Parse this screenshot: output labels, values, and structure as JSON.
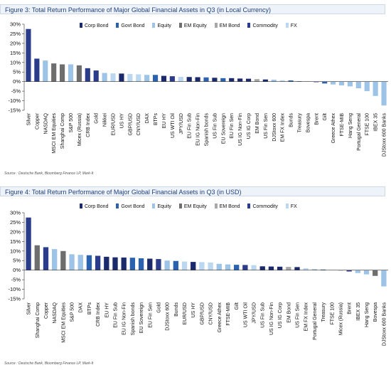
{
  "legend": [
    {
      "name": "Corp Bond",
      "color": "#1b2a6b"
    },
    {
      "name": "Govt Bond",
      "color": "#2b62b0"
    },
    {
      "name": "Equity",
      "color": "#9dc3e6"
    },
    {
      "name": "EM Equity",
      "color": "#6e6e6e"
    },
    {
      "name": "EM Bond",
      "color": "#a8a8a8"
    },
    {
      "name": "Commodity",
      "color": "#2a3c8a"
    },
    {
      "name": "FX",
      "color": "#bcd8f0"
    }
  ],
  "chart_data": [
    {
      "type": "bar",
      "title": "Figure 3: Total Return Performance of Major Global Financial Assets in Q3 (in Local Currency)",
      "source": "Source : Deutsche Bank, Bloomberg Finance LP, Mark-It",
      "ylim": [
        -15,
        30
      ],
      "yticks": [
        "-15%",
        "-10%",
        "-5%",
        "0%",
        "5%",
        "10%",
        "15%",
        "20%",
        "25%",
        "30%"
      ],
      "grid": false,
      "legend_position": "top",
      "categories": [
        "Silver",
        "Copper",
        "NASDAQ",
        "MSCI EM Equities",
        "Shanghai Comp",
        "S&P 500",
        "Micex (Russia)",
        "CRB Index",
        "Gold",
        "Nikkei",
        "EUR/USD",
        "US HY",
        "GBP/USD",
        "CNY/USD",
        "DAX",
        "BTPs",
        "EU HY",
        "US WTI Oil",
        "JPY/USD",
        "EU Fin Sub",
        "EU IG Non-Fin",
        "Spanish bonds",
        "US Fin Sub",
        "EU Sovereign",
        "EU Fin Sen",
        "US IG Non-Fin",
        "US IG Corp",
        "EM Bond",
        "US Fin Sen",
        "DJStoxx 600",
        "EM FX Index",
        "Bunds",
        "Treasury",
        "Bovespa",
        "Brent",
        "Gilt",
        "Greece Athex",
        "FTSE-MIB",
        "Hang Seng",
        "Portugal General",
        "FTSE 100",
        "IBEX 35",
        "DJStoxx 600 Banks"
      ],
      "values": [
        27.5,
        12,
        11,
        9.5,
        9,
        9,
        8.5,
        7,
        5.8,
        4.5,
        4.3,
        4.2,
        4,
        3.8,
        3.5,
        3.5,
        3,
        2.8,
        2.5,
        2.4,
        2.3,
        2.2,
        2,
        1.8,
        1.8,
        1.6,
        1.5,
        1.3,
        1.1,
        1,
        0.7,
        0.6,
        0.2,
        0.1,
        -0.3,
        -1,
        -1.5,
        -2,
        -2.5,
        -3.5,
        -5,
        -7.5,
        -12.5
      ],
      "colors": [
        "#2a3c8a",
        "#2a3c8a",
        "#9dc3e6",
        "#6e6e6e",
        "#6e6e6e",
        "#9dc3e6",
        "#6e6e6e",
        "#2a3c8a",
        "#2a3c8a",
        "#9dc3e6",
        "#bcd8f0",
        "#1b2a6b",
        "#bcd8f0",
        "#bcd8f0",
        "#9dc3e6",
        "#2b62b0",
        "#1b2a6b",
        "#2a3c8a",
        "#bcd8f0",
        "#1b2a6b",
        "#1b2a6b",
        "#2b62b0",
        "#1b2a6b",
        "#2b62b0",
        "#1b2a6b",
        "#1b2a6b",
        "#1b2a6b",
        "#a8a8a8",
        "#1b2a6b",
        "#9dc3e6",
        "#bcd8f0",
        "#2b62b0",
        "#2b62b0",
        "#6e6e6e",
        "#2a3c8a",
        "#2b62b0",
        "#9dc3e6",
        "#9dc3e6",
        "#9dc3e6",
        "#9dc3e6",
        "#9dc3e6",
        "#9dc3e6",
        "#9dc3e6"
      ]
    },
    {
      "type": "bar",
      "title": "Figure 4: Total Return Performance of Major Global Financial Assets in Q3 (in USD)",
      "source": "Source : Deutsche Bank, Bloomberg Finance LP, Mark-It",
      "ylim": [
        -15,
        30
      ],
      "yticks": [
        "-15%",
        "-10%",
        "-5%",
        "0%",
        "5%",
        "10%",
        "15%",
        "20%",
        "25%",
        "30%"
      ],
      "grid": false,
      "legend_position": "top",
      "categories": [
        "Silver",
        "Shanghai Comp",
        "Copper",
        "NASDAQ",
        "MSCI EM Equities",
        "S&P 500",
        "DAX",
        "BTPs",
        "CRB Index",
        "EU HY",
        "EU Fin Sub",
        "EU IG Non-Fin",
        "Spanish bonds",
        "EU Sovereign",
        "EU Fin Sen",
        "Gold",
        "DJStoxx 600",
        "Bunds",
        "EUR/USD",
        "US HY",
        "GBP/USD",
        "CNY/USD",
        "Greece Athex",
        "FTSE-MIB",
        "Gilt",
        "US WTI Oil",
        "JPY/USD",
        "US Fin Sub",
        "US IG Non-Fin",
        "US IG Corp",
        "EM Bond",
        "US Fin Sen",
        "EM FX Index",
        "Portugal General",
        "Treasury",
        "FTSE 100",
        "Micex (Russia)",
        "Brent",
        "IBEX 35",
        "Hang Seng",
        "Bovespa",
        "DJStoxx 600 Banks"
      ],
      "values": [
        27.5,
        13,
        12,
        11,
        10,
        8.3,
        8,
        7.8,
        7.5,
        7,
        6.7,
        6.6,
        6.5,
        6.2,
        6,
        5.8,
        5,
        4.8,
        4.5,
        4.3,
        4.2,
        4,
        3.3,
        3,
        2.8,
        2.7,
        2.6,
        2,
        1.9,
        1.8,
        1.7,
        1.6,
        1,
        0.5,
        0.3,
        0.1,
        -0.2,
        -0.7,
        -1.5,
        -2.2,
        -3,
        -8.5
      ],
      "colors": [
        "#2a3c8a",
        "#6e6e6e",
        "#2a3c8a",
        "#9dc3e6",
        "#6e6e6e",
        "#9dc3e6",
        "#9dc3e6",
        "#2b62b0",
        "#2a3c8a",
        "#1b2a6b",
        "#1b2a6b",
        "#1b2a6b",
        "#2b62b0",
        "#2b62b0",
        "#1b2a6b",
        "#2a3c8a",
        "#9dc3e6",
        "#2b62b0",
        "#bcd8f0",
        "#1b2a6b",
        "#bcd8f0",
        "#bcd8f0",
        "#9dc3e6",
        "#9dc3e6",
        "#2b62b0",
        "#2a3c8a",
        "#bcd8f0",
        "#1b2a6b",
        "#1b2a6b",
        "#1b2a6b",
        "#a8a8a8",
        "#1b2a6b",
        "#bcd8f0",
        "#9dc3e6",
        "#2b62b0",
        "#9dc3e6",
        "#6e6e6e",
        "#2a3c8a",
        "#9dc3e6",
        "#9dc3e6",
        "#6e6e6e",
        "#9dc3e6"
      ]
    }
  ]
}
